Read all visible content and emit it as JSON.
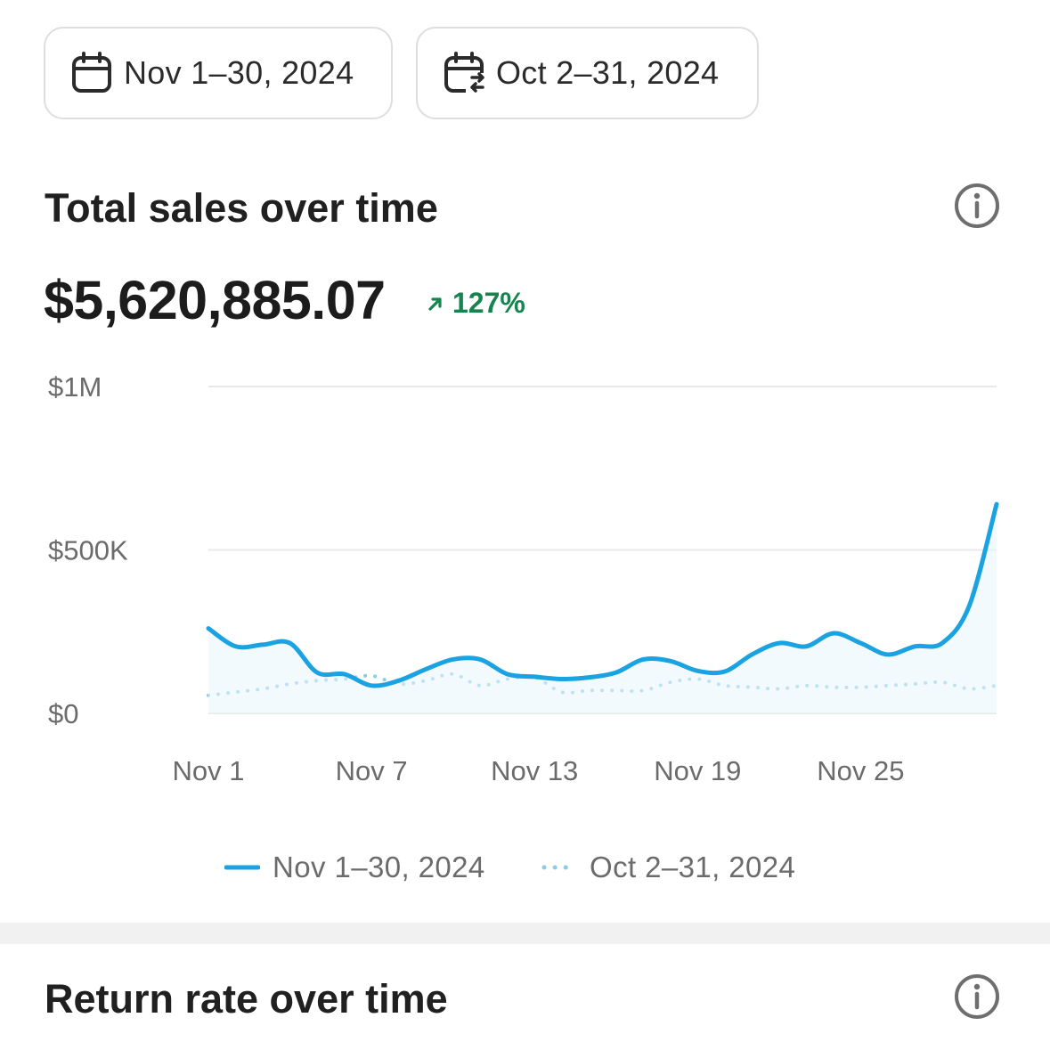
{
  "date_range": {
    "current_label": "Nov 1–30, 2024",
    "compare_label": "Oct 2–31, 2024",
    "current_icon": "calendar-icon",
    "compare_icon": "calendar-compare-icon"
  },
  "total_sales": {
    "title": "Total sales over time",
    "value": "$5,620,885.07",
    "delta": "127%",
    "delta_direction": "up",
    "delta_color": "#14854f",
    "info_icon": "info-icon"
  },
  "chart_data": {
    "type": "line",
    "title": "",
    "xlabel": "",
    "ylabel": "",
    "y_ticks": [
      "$1M",
      "$500K",
      "$0"
    ],
    "x_ticks": [
      "Nov 1",
      "Nov 7",
      "Nov 13",
      "Nov 19",
      "Nov 25"
    ],
    "ylim": [
      0,
      1000000
    ],
    "x": [
      1,
      2,
      3,
      4,
      5,
      6,
      7,
      8,
      9,
      10,
      11,
      12,
      13,
      14,
      15,
      16,
      17,
      18,
      19,
      20,
      21,
      22,
      23,
      24,
      25,
      26,
      27,
      28,
      29,
      30
    ],
    "series": [
      {
        "name": "Nov 1–30, 2024",
        "color": "#1aa3e0",
        "style": "solid",
        "values": [
          260000,
          205000,
          210000,
          215000,
          125000,
          120000,
          85000,
          100000,
          135000,
          165000,
          165000,
          120000,
          112000,
          105000,
          110000,
          125000,
          165000,
          160000,
          130000,
          128000,
          180000,
          215000,
          205000,
          245000,
          215000,
          180000,
          205000,
          215000,
          330000,
          640000
        ]
      },
      {
        "name": "Oct 2–31, 2024",
        "color": "#8ccbe6",
        "style": "dotted",
        "values": [
          55000,
          65000,
          75000,
          90000,
          100000,
          105000,
          115000,
          90000,
          100000,
          120000,
          85000,
          105000,
          110000,
          65000,
          70000,
          70000,
          70000,
          95000,
          105000,
          85000,
          80000,
          75000,
          85000,
          80000,
          80000,
          85000,
          90000,
          95000,
          75000,
          85000
        ]
      }
    ],
    "grid": true,
    "legend_position": "bottom"
  },
  "return_rate": {
    "title": "Return rate over time",
    "info_icon": "info-icon"
  }
}
